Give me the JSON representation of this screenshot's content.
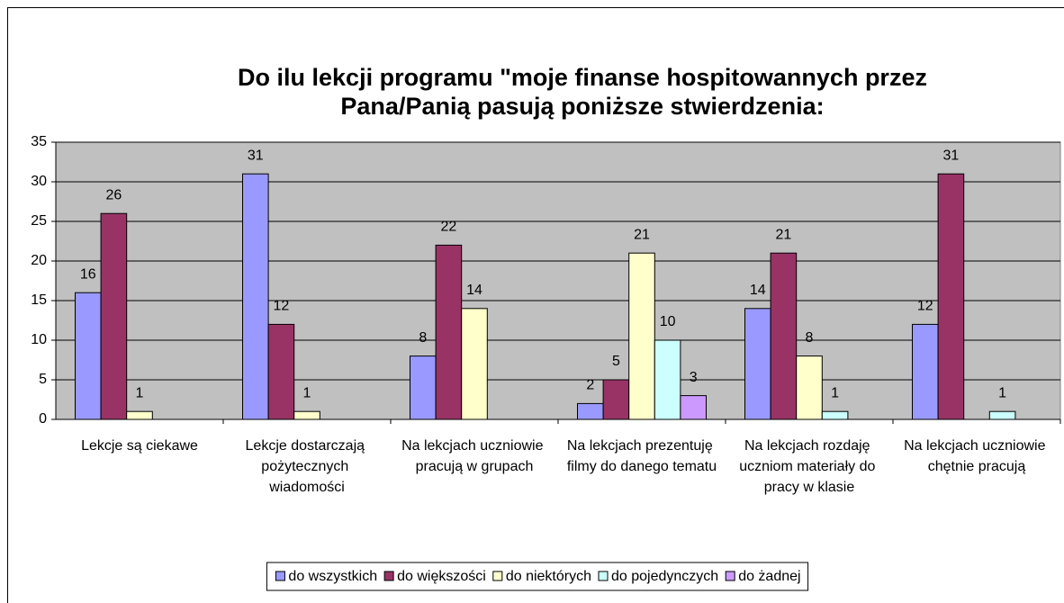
{
  "chart_data": {
    "type": "bar",
    "title": [
      "Do ilu lekcji programu \"moje finanse hospitowannych przez",
      "Pana/Panią pasują poniższe stwierdzenia:"
    ],
    "categories": [
      "Lekcje są ciekawe",
      "Lekcje dostarczają pożytecznych wiadomości",
      "Na lekcjach uczniowie pracują w grupach",
      "Na lekcjach prezentuję filmy do danego tematu",
      "Na lekcjach rozdaję uczniom materiały do pracy w klasie",
      "Na lekcjach uczniowie chętnie pracują"
    ],
    "series": [
      {
        "name": "do wszystkich",
        "color": "#9999ff",
        "values": [
          16,
          31,
          8,
          2,
          14,
          12
        ]
      },
      {
        "name": "do większości",
        "color": "#993366",
        "values": [
          26,
          12,
          22,
          5,
          21,
          31
        ]
      },
      {
        "name": "do niektórych",
        "color": "#ffffcc",
        "values": [
          1,
          1,
          14,
          21,
          8,
          null
        ]
      },
      {
        "name": "do pojedynczych",
        "color": "#ccffff",
        "values": [
          null,
          null,
          null,
          10,
          1,
          1
        ]
      },
      {
        "name": "do żadnej",
        "color": "#cc99ff",
        "values": [
          null,
          null,
          null,
          3,
          null,
          null
        ]
      }
    ],
    "ylim": [
      0,
      35
    ],
    "yticks": [
      0,
      5,
      10,
      15,
      20,
      25,
      30,
      35
    ],
    "grid": true,
    "legend": "bottom"
  }
}
